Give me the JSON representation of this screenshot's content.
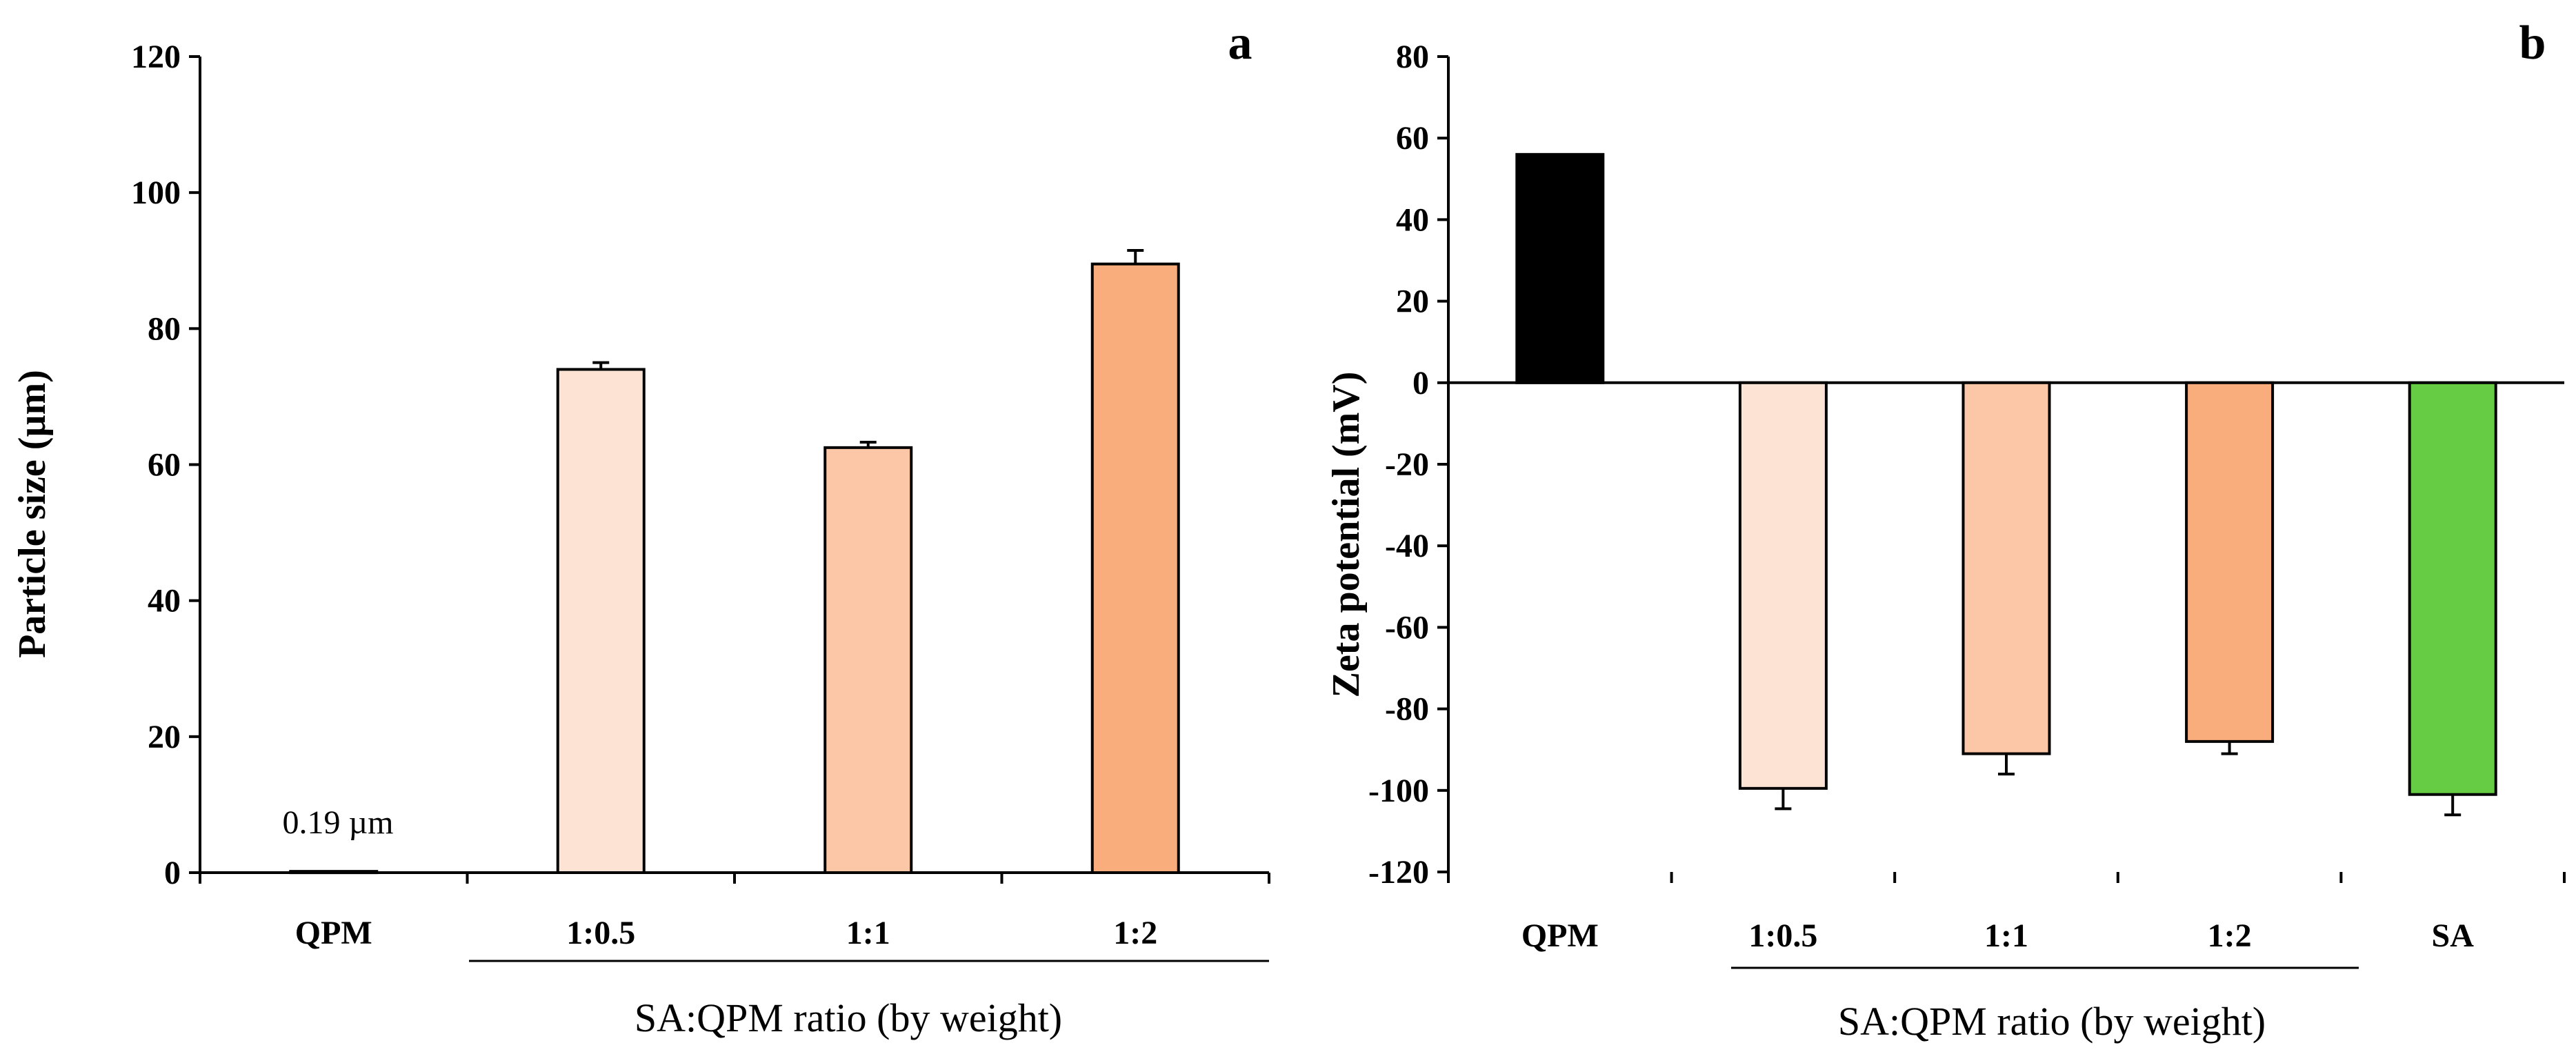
{
  "chart_data": [
    {
      "panel": "a",
      "type": "bar",
      "categories": [
        "QPM",
        "1:0.5",
        "1:1",
        "1:2"
      ],
      "values": [
        0.19,
        74,
        62.5,
        89.5
      ],
      "errors": [
        0,
        1.0,
        0.8,
        2.0
      ],
      "colors": [
        "#ffffff",
        "#fde3d3",
        "#fcc7a6",
        "#f9ad7d"
      ],
      "ylabel": "Particle size (µm)",
      "xlabel": "SA:QPM ratio (by weight)",
      "ylim": [
        0,
        120
      ],
      "yticks": [
        0,
        20,
        40,
        60,
        80,
        100,
        120
      ],
      "annotation": "0.19 µm",
      "grid": false
    },
    {
      "panel": "b",
      "type": "bar",
      "categories": [
        "QPM",
        "1:0.5",
        "1:1",
        "1:2",
        "SA"
      ],
      "values": [
        56,
        -99.5,
        -91,
        -88,
        -101
      ],
      "errors": [
        0,
        5,
        5,
        3,
        5
      ],
      "colors": [
        "#000000",
        "#fde3d3",
        "#fcc7a6",
        "#f9ad7d",
        "#66cc44"
      ],
      "ylabel": "Zeta potential (mV)",
      "xlabel": "SA:QPM ratio (by weight)",
      "ylim": [
        -120,
        80
      ],
      "yticks": [
        -120,
        -100,
        -80,
        -60,
        -40,
        -20,
        0,
        20,
        40,
        60,
        80
      ],
      "grid": false
    }
  ]
}
